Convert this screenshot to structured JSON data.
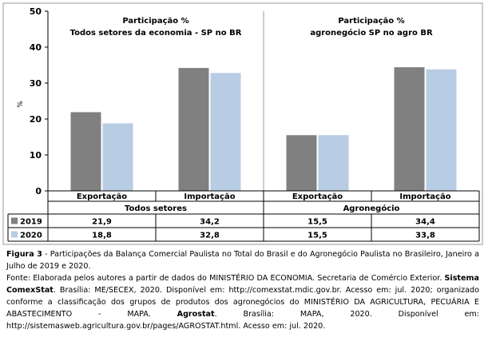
{
  "chart_data": {
    "type": "bar",
    "ylabel": "%",
    "ylim": [
      0,
      50
    ],
    "yticks": [
      0,
      10,
      20,
      30,
      40,
      50
    ],
    "grid": false,
    "panels": [
      {
        "title_line1": "Participação %",
        "title_line2": "Todos setores da economia - SP no BR",
        "group_label": "Todos setores",
        "categories": [
          "Exportação",
          "Importação"
        ]
      },
      {
        "title_line1": "Participação %",
        "title_line2": "agronegócio SP no agro BR",
        "group_label": "Agronegócio",
        "categories": [
          "Exportação",
          "Importação"
        ]
      }
    ],
    "series": [
      {
        "name": "2019",
        "color": "#808080",
        "values": [
          21.9,
          34.2,
          15.5,
          34.4
        ],
        "labels": [
          "21,9",
          "34,2",
          "15,5",
          "34,4"
        ]
      },
      {
        "name": "2020",
        "color": "#b8cce4",
        "values": [
          18.8,
          32.8,
          15.5,
          33.8
        ],
        "labels": [
          "18,8",
          "32,8",
          "15,5",
          "33,8"
        ]
      }
    ]
  },
  "caption": {
    "figure_label": "Figura 3",
    "figure_text": " - Participações da Balança Comercial Paulista no Total do Brasil e do Agronegócio Paulista no Brasileiro, Janeiro a Julho de 2019 e 2020.",
    "source_1": "Fonte: Elaborada pelos autores a partir de dados do MINISTÉRIO DA ECONOMIA. Secretaria de Comércio Exterior. ",
    "source_bold_1": "Sistema ComexStat",
    "source_2": ". Brasília: ME/SECEX, 2020. Disponível em: http://comexstat.mdic.gov.br. Acesso em: jul. 2020; organizado conforme a classificação dos grupos de produtos dos agronegócios do MINISTÉRIO DA AGRICULTURA, PECUÁRIA E ABASTECIMENTO - MAPA. ",
    "source_bold_2": "Agrostat",
    "source_3": ". Brasília: MAPA, 2020. Disponível em: http://sistemasweb.agricultura.gov.br/pages/AGROSTAT.html. Acesso em: jul. 2020."
  }
}
